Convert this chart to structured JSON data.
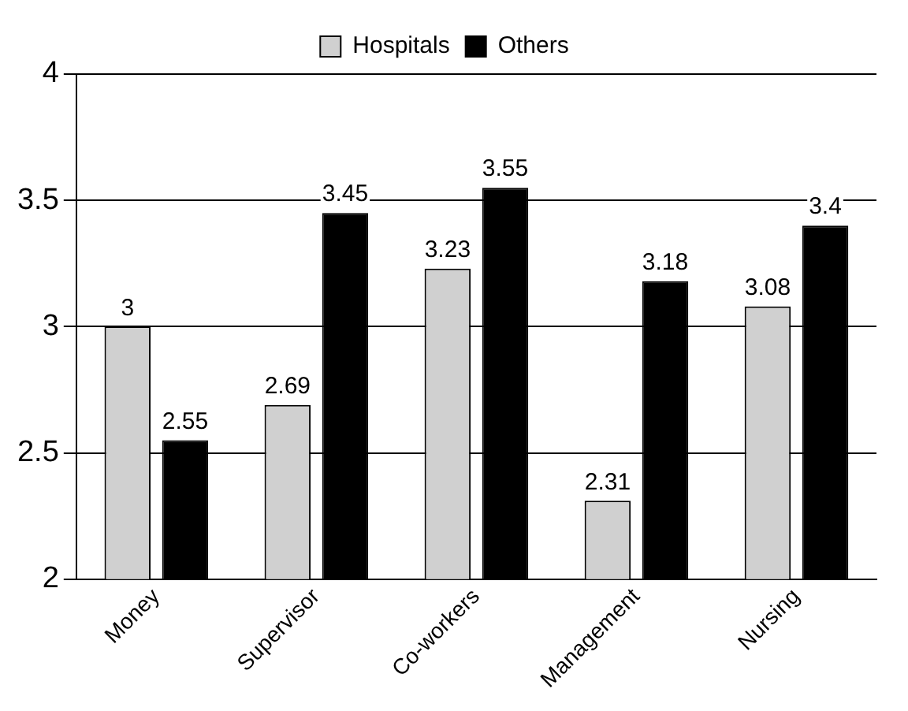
{
  "chart_data": {
    "type": "bar",
    "categories": [
      "Money",
      "Supervisor",
      "Co-workers",
      "Management",
      "Nursing"
    ],
    "series": [
      {
        "name": "Hospitals",
        "color": "#d0d0d0",
        "values": [
          3,
          2.69,
          3.23,
          2.31,
          3.08
        ]
      },
      {
        "name": "Others",
        "color": "#000000",
        "values": [
          2.55,
          3.45,
          3.55,
          3.18,
          3.4
        ]
      }
    ],
    "ylim": [
      2,
      4
    ],
    "yticks": [
      2,
      2.5,
      3,
      3.5,
      4
    ],
    "grid": "y",
    "legend": "top",
    "data_labels": true
  }
}
